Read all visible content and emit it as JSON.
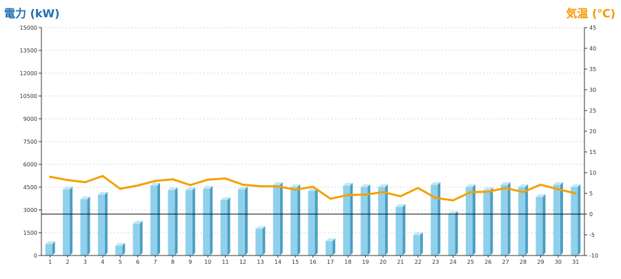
{
  "chart_data": {
    "type": "bar",
    "y_left_label": "電力 (kW)",
    "y_right_label": "気温 (℃)",
    "categories": [
      "1",
      "2",
      "3",
      "4",
      "5",
      "6",
      "7",
      "8",
      "9",
      "10",
      "11",
      "12",
      "13",
      "14",
      "15",
      "16",
      "17",
      "18",
      "19",
      "20",
      "21",
      "22",
      "23",
      "24",
      "25",
      "26",
      "27",
      "28",
      "29",
      "30",
      "31"
    ],
    "series": [
      {
        "type": "bar",
        "axis": "left",
        "values": [
          750,
          4350,
          3700,
          4000,
          650,
          2100,
          4600,
          4300,
          4300,
          4400,
          3650,
          4350,
          1750,
          4650,
          4500,
          4250,
          950,
          4600,
          4500,
          4500,
          3200,
          1350,
          4650,
          2750,
          4500,
          4300,
          4650,
          4500,
          3850,
          4650,
          4500
        ]
      },
      {
        "type": "line",
        "axis": "right",
        "values": [
          9,
          8.2,
          7.7,
          9.2,
          6.1,
          6.9,
          8.0,
          8.4,
          7.0,
          8.3,
          8.6,
          7.1,
          6.7,
          6.7,
          5.9,
          6.6,
          3.7,
          4.6,
          4.7,
          5.3,
          4.3,
          6.3,
          3.9,
          3.3,
          5.3,
          5.4,
          6.3,
          5.3,
          7.1,
          6.0,
          5.0
        ]
      }
    ],
    "y_left": {
      "min": 0,
      "max": 15000,
      "ticks": [
        "0",
        "1500",
        "3000",
        "4500",
        "6000",
        "7500",
        "9000",
        "10500",
        "12000",
        "13500",
        "15000"
      ]
    },
    "y_right": {
      "min": -10,
      "max": 45,
      "ticks": [
        "-10",
        "-5",
        "0",
        "5",
        "10",
        "15",
        "20",
        "25",
        "30",
        "35",
        "40",
        "45"
      ]
    },
    "grid": true,
    "colors": {
      "bar_front": "#8fd0ec",
      "bar_side": "#4b9fc2",
      "bar_top": "#c2e7f6",
      "line": "#f5a000",
      "left_title": "#1f6fb2",
      "right_title": "#f39800",
      "zero_line": "#000000",
      "grid": "#c8c8c8"
    }
  }
}
